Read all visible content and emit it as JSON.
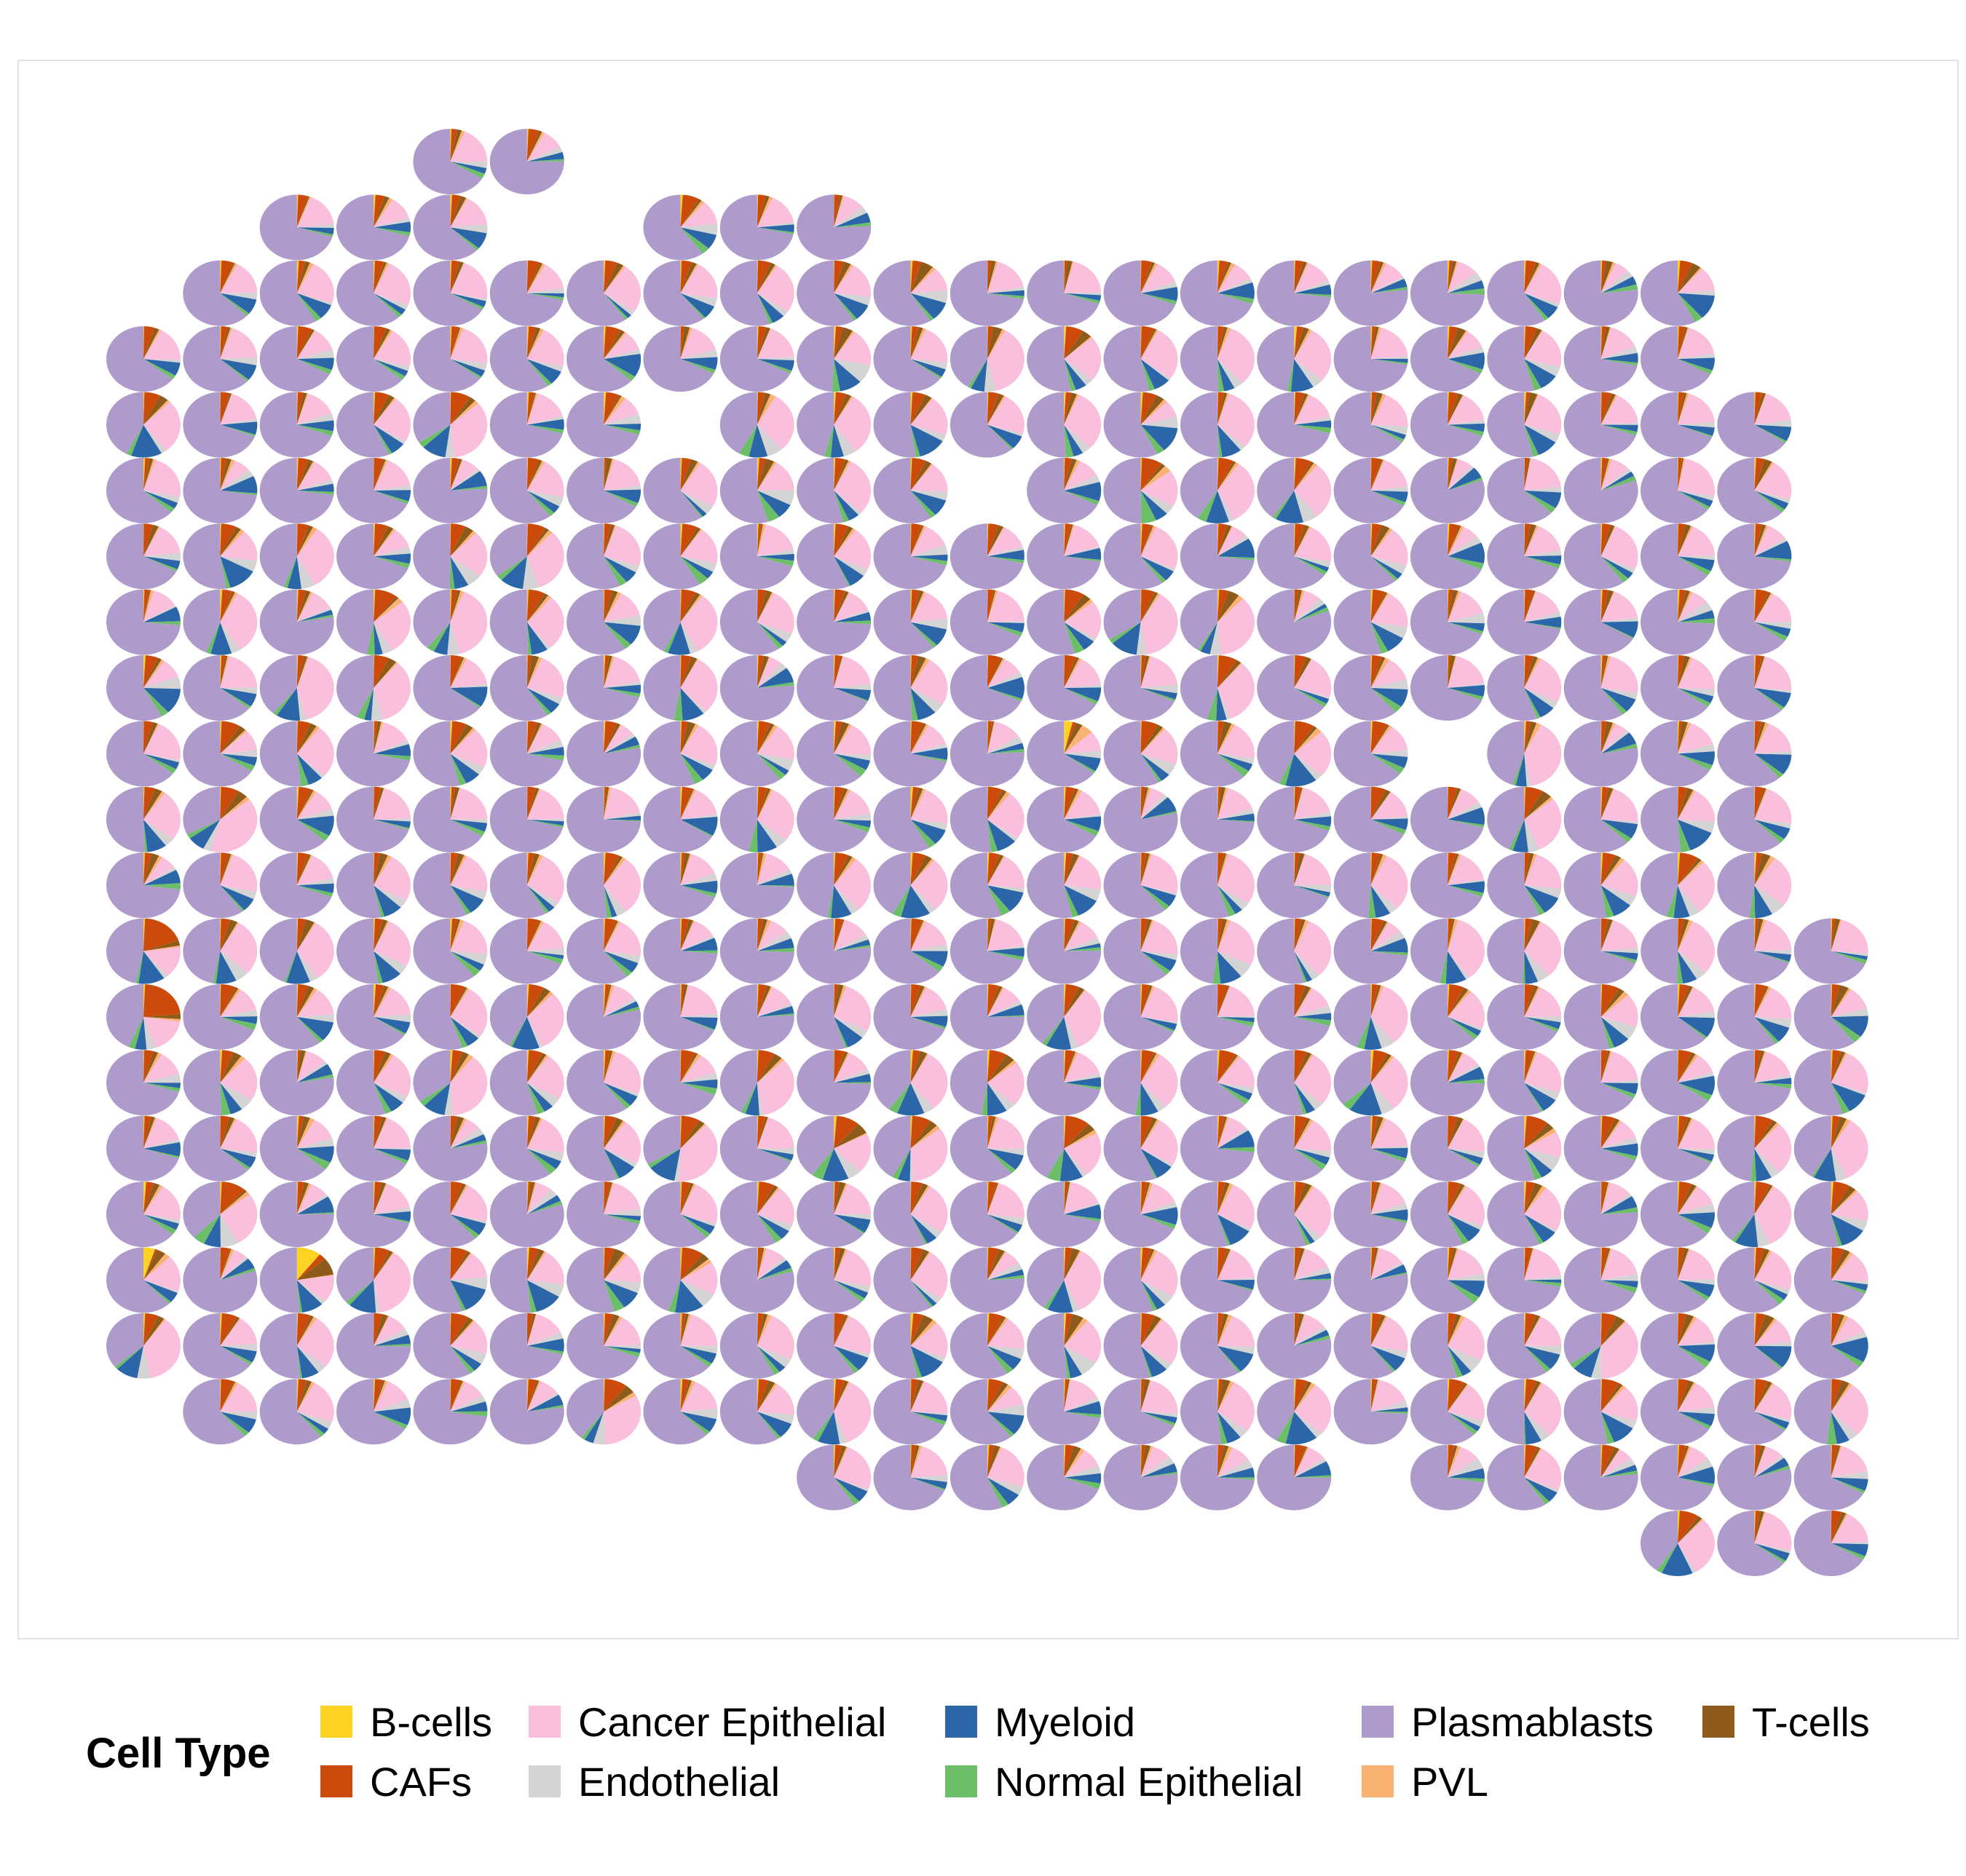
{
  "chart_data": {
    "type": "scatter",
    "subtype": "spatial-scatterpie",
    "title": "",
    "xlabel": "",
    "ylabel": "",
    "grid": false,
    "legend": {
      "title": "Cell Type",
      "placement": "bottom",
      "entries": [
        "B-cells",
        "CAFs",
        "Cancer Epithelial",
        "Endothelial",
        "Myeloid",
        "Normal Epithelial",
        "Plasmablasts",
        "PVL",
        "T-cells"
      ]
    },
    "cell_types": [
      {
        "name": "B-cells",
        "color": "#FDD223"
      },
      {
        "name": "CAFs",
        "color": "#CC4A0A"
      },
      {
        "name": "Cancer Epithelial",
        "color": "#F9BFDC"
      },
      {
        "name": "Endothelial",
        "color": "#D4D4D4"
      },
      {
        "name": "Myeloid",
        "color": "#2B67A8"
      },
      {
        "name": "Normal Epithelial",
        "color": "#6DBE69"
      },
      {
        "name": "Plasmablasts",
        "color": "#AE9BCB"
      },
      {
        "name": "PVL",
        "color": "#F9B272"
      },
      {
        "name": "T-cells",
        "color": "#8E5B1A"
      }
    ],
    "grid_layout": {
      "columns": 23,
      "rows": 22,
      "spots_per_row": [
        {
          "row": 0,
          "cols": [
            4,
            5
          ]
        },
        {
          "row": 1,
          "cols": [
            2,
            3,
            4,
            7,
            8,
            9
          ]
        },
        {
          "row": 2,
          "cols": [
            1,
            2,
            3,
            4,
            5,
            6,
            7,
            8,
            9,
            10,
            11,
            12,
            13,
            14,
            15,
            16,
            17,
            18,
            19,
            20
          ]
        },
        {
          "row": 3,
          "cols": [
            0,
            1,
            2,
            3,
            4,
            5,
            6,
            7,
            8,
            9,
            10,
            11,
            12,
            13,
            14,
            15,
            16,
            17,
            18,
            19,
            20
          ]
        },
        {
          "row": 4,
          "cols": [
            0,
            1,
            2,
            3,
            4,
            5,
            6,
            8,
            9,
            10,
            11,
            12,
            13,
            14,
            15,
            16,
            17,
            18,
            19,
            20,
            21
          ]
        },
        {
          "row": 5,
          "cols": [
            0,
            1,
            2,
            3,
            4,
            5,
            6,
            7,
            8,
            9,
            10,
            12,
            13,
            14,
            15,
            16,
            17,
            18,
            19,
            20,
            21
          ]
        },
        {
          "row": 6,
          "cols": [
            0,
            1,
            2,
            3,
            4,
            5,
            6,
            7,
            8,
            9,
            10,
            11,
            12,
            13,
            14,
            15,
            16,
            17,
            18,
            19,
            20,
            21
          ]
        },
        {
          "row": 7,
          "cols": [
            0,
            1,
            2,
            3,
            4,
            5,
            6,
            7,
            8,
            9,
            10,
            11,
            12,
            13,
            14,
            15,
            16,
            17,
            18,
            19,
            20,
            21
          ]
        },
        {
          "row": 8,
          "cols": [
            0,
            1,
            2,
            3,
            4,
            5,
            6,
            7,
            8,
            9,
            10,
            11,
            12,
            13,
            14,
            15,
            16,
            17,
            18,
            19,
            20,
            21
          ]
        },
        {
          "row": 9,
          "cols": [
            0,
            1,
            2,
            3,
            4,
            5,
            6,
            7,
            8,
            9,
            10,
            11,
            12,
            13,
            14,
            15,
            16,
            18,
            19,
            20,
            21
          ]
        },
        {
          "row": 10,
          "cols": [
            0,
            1,
            2,
            3,
            4,
            5,
            6,
            7,
            8,
            9,
            10,
            11,
            12,
            13,
            14,
            15,
            16,
            17,
            18,
            19,
            20,
            21
          ]
        },
        {
          "row": 11,
          "cols": [
            0,
            1,
            2,
            3,
            4,
            5,
            6,
            7,
            8,
            9,
            10,
            11,
            12,
            13,
            14,
            15,
            16,
            17,
            18,
            19,
            20,
            21
          ]
        },
        {
          "row": 12,
          "cols": [
            0,
            1,
            2,
            3,
            4,
            5,
            6,
            7,
            8,
            9,
            10,
            11,
            12,
            13,
            14,
            15,
            16,
            17,
            18,
            19,
            20,
            21,
            22
          ]
        },
        {
          "row": 13,
          "cols": [
            0,
            1,
            2,
            3,
            4,
            5,
            6,
            7,
            8,
            9,
            10,
            11,
            12,
            13,
            14,
            15,
            16,
            17,
            18,
            19,
            20,
            21,
            22
          ]
        },
        {
          "row": 14,
          "cols": [
            0,
            1,
            2,
            3,
            4,
            5,
            6,
            7,
            8,
            9,
            10,
            11,
            12,
            13,
            14,
            15,
            16,
            17,
            18,
            19,
            20,
            21,
            22
          ]
        },
        {
          "row": 15,
          "cols": [
            0,
            1,
            2,
            3,
            4,
            5,
            6,
            7,
            8,
            9,
            10,
            11,
            12,
            13,
            14,
            15,
            16,
            17,
            18,
            19,
            20,
            21,
            22
          ]
        },
        {
          "row": 16,
          "cols": [
            0,
            1,
            2,
            3,
            4,
            5,
            6,
            7,
            8,
            9,
            10,
            11,
            12,
            13,
            14,
            15,
            16,
            17,
            18,
            19,
            20,
            21,
            22
          ]
        },
        {
          "row": 17,
          "cols": [
            0,
            1,
            2,
            3,
            4,
            5,
            6,
            7,
            8,
            9,
            10,
            11,
            12,
            13,
            14,
            15,
            16,
            17,
            18,
            19,
            20,
            21,
            22
          ]
        },
        {
          "row": 18,
          "cols": [
            0,
            1,
            2,
            3,
            4,
            5,
            6,
            7,
            8,
            9,
            10,
            11,
            12,
            13,
            14,
            15,
            16,
            17,
            18,
            19,
            20,
            21,
            22
          ]
        },
        {
          "row": 19,
          "cols": [
            1,
            2,
            3,
            4,
            5,
            6,
            7,
            8,
            9,
            10,
            11,
            12,
            13,
            14,
            15,
            16,
            17,
            18,
            19,
            20,
            21,
            22
          ]
        },
        {
          "row": 20,
          "cols": [
            9,
            10,
            11,
            12,
            13,
            14,
            15,
            17,
            18,
            19,
            20,
            21,
            22
          ]
        },
        {
          "row": 21,
          "cols": [
            20,
            21,
            22
          ]
        }
      ]
    },
    "typical_spot_composition": {
      "Plasmablasts": 0.62,
      "Cancer Epithelial": 0.18,
      "Myeloid": 0.06,
      "CAFs": 0.04,
      "Endothelial": 0.03,
      "Normal Epithelial": 0.02,
      "T-cells": 0.02,
      "PVL": 0.01,
      "B-cells": 0.005
    },
    "notable_spots": [
      {
        "row": 13,
        "col": 0,
        "dominant": "CAFs",
        "CAFs": 0.25
      },
      {
        "row": 12,
        "col": 0,
        "dominant": "Plasmablasts",
        "CAFs": 0.15
      },
      {
        "row": 17,
        "col": 0,
        "B-cells": 0.08,
        "T-cells": 0.06,
        "PVL": 0.04
      },
      {
        "row": 17,
        "col": 2,
        "B-cells": 0.1,
        "T-cells": 0.08
      },
      {
        "row": 9,
        "col": 12,
        "PVL": 0.07,
        "B-cells": 0.05,
        "T-cells": 0.04
      },
      {
        "row": 6,
        "col": 21,
        "Myeloid": 0.12
      },
      {
        "row": 8,
        "col": 11,
        "Myeloid": 0.12
      }
    ]
  }
}
